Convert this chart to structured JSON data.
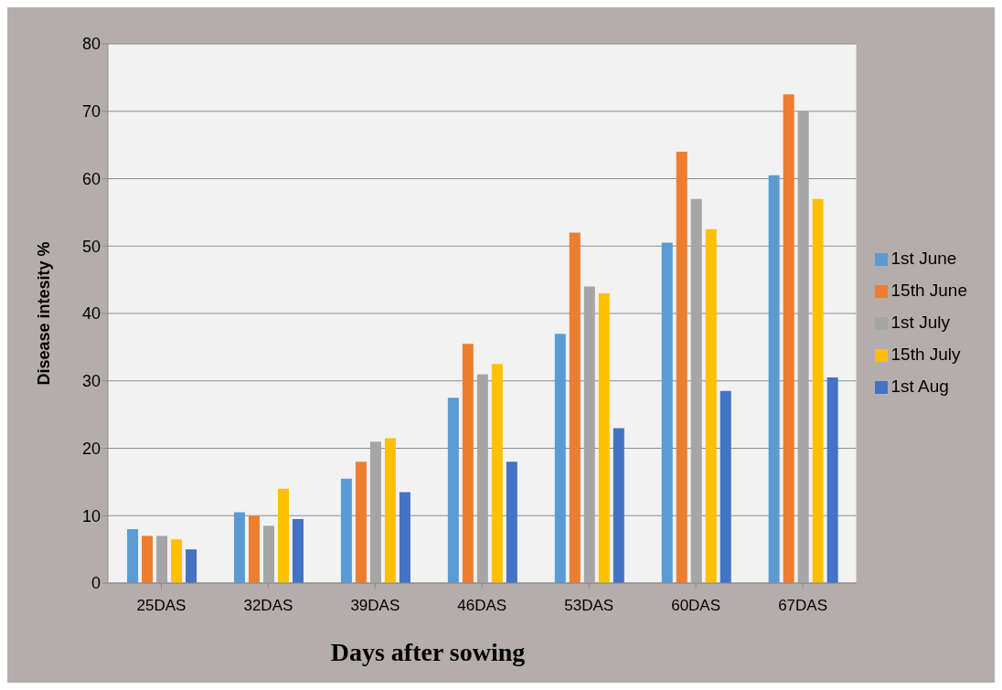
{
  "chart_data": {
    "type": "bar",
    "xlabel": "Days after sowing",
    "ylabel": "Disease intesity %",
    "categories": [
      "25DAS",
      "32DAS",
      "39DAS",
      "46DAS",
      "53DAS",
      "60DAS",
      "67DAS"
    ],
    "series": [
      {
        "name": "1st June",
        "color": "#5b9bd5",
        "values": [
          8,
          10.5,
          15.5,
          27.5,
          37,
          50.5,
          60.5
        ]
      },
      {
        "name": "15th June",
        "color": "#ed7d31",
        "values": [
          7,
          10,
          18,
          35.5,
          52,
          64,
          72.5
        ]
      },
      {
        "name": "1st  July",
        "color": "#a5a5a5",
        "values": [
          7,
          8.5,
          21,
          31,
          44,
          57,
          70
        ]
      },
      {
        "name": "15th July",
        "color": "#ffc000",
        "values": [
          6.5,
          14,
          21.5,
          32.5,
          43,
          52.5,
          57
        ]
      },
      {
        "name": "1st Aug",
        "color": "#4472c4",
        "values": [
          5,
          9.5,
          13.5,
          18,
          23,
          28.5,
          30.5
        ]
      }
    ],
    "ylim": [
      0,
      80
    ],
    "yticks": [
      0,
      10,
      20,
      30,
      40,
      50,
      60,
      70,
      80
    ],
    "grid": "y",
    "legend": "right"
  }
}
